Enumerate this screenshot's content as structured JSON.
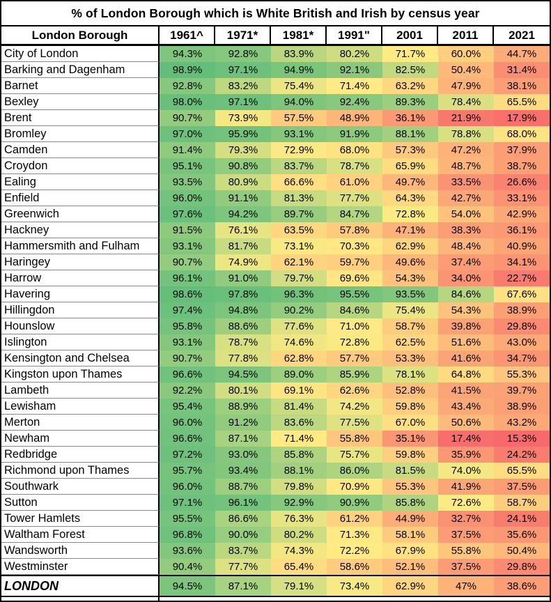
{
  "chart_data": {
    "type": "heatmap",
    "title": "% of London Borough which is White British and Irish by census year",
    "row_header": "London Borough",
    "columns": [
      "1961^",
      "1971*",
      "1981*",
      "1991\"",
      "2001",
      "2011",
      "2021"
    ],
    "rows": [
      {
        "name": "City of London",
        "values": [
          94.3,
          92.8,
          83.9,
          80.2,
          71.7,
          60.0,
          44.7
        ]
      },
      {
        "name": "Barking and Dagenham",
        "values": [
          98.9,
          97.1,
          94.9,
          92.1,
          82.5,
          50.4,
          31.4
        ]
      },
      {
        "name": "Barnet",
        "values": [
          92.8,
          83.2,
          75.4,
          71.4,
          63.2,
          47.9,
          38.1
        ]
      },
      {
        "name": "Bexley",
        "values": [
          98.0,
          97.1,
          94.0,
          92.4,
          89.3,
          78.4,
          65.5
        ]
      },
      {
        "name": "Brent",
        "values": [
          90.7,
          73.9,
          57.5,
          48.9,
          36.1,
          21.9,
          17.9
        ]
      },
      {
        "name": "Bromley",
        "values": [
          97.0,
          95.9,
          93.1,
          91.9,
          88.1,
          78.8,
          68.0
        ]
      },
      {
        "name": "Camden",
        "values": [
          91.4,
          79.3,
          72.9,
          68.0,
          57.3,
          47.2,
          37.9
        ]
      },
      {
        "name": "Croydon",
        "values": [
          95.1,
          90.8,
          83.7,
          78.7,
          65.9,
          48.7,
          38.7
        ]
      },
      {
        "name": "Ealing",
        "values": [
          93.5,
          80.9,
          66.6,
          61.0,
          49.7,
          33.5,
          26.6
        ]
      },
      {
        "name": "Enfield",
        "values": [
          96.0,
          91.1,
          81.3,
          77.7,
          64.3,
          42.7,
          33.1
        ]
      },
      {
        "name": "Greenwich",
        "values": [
          97.6,
          94.2,
          89.7,
          84.7,
          72.8,
          54.0,
          42.9
        ]
      },
      {
        "name": "Hackney",
        "values": [
          91.5,
          76.1,
          63.5,
          57.8,
          47.1,
          38.3,
          36.1
        ]
      },
      {
        "name": "Hammersmith and Fulham",
        "values": [
          93.1,
          81.7,
          73.1,
          70.3,
          62.9,
          48.4,
          40.9
        ]
      },
      {
        "name": "Haringey",
        "values": [
          90.7,
          74.9,
          62.1,
          59.7,
          49.6,
          37.4,
          34.1
        ]
      },
      {
        "name": "Harrow",
        "values": [
          96.1,
          91.0,
          79.7,
          69.6,
          54.3,
          34.0,
          22.7
        ]
      },
      {
        "name": "Havering",
        "values": [
          98.6,
          97.8,
          96.3,
          95.5,
          93.5,
          84.6,
          67.6
        ]
      },
      {
        "name": "Hillingdon",
        "values": [
          97.4,
          94.8,
          90.2,
          84.6,
          75.4,
          54.3,
          38.9
        ]
      },
      {
        "name": "Hounslow",
        "values": [
          95.8,
          88.6,
          77.6,
          71.0,
          58.7,
          39.8,
          29.8
        ]
      },
      {
        "name": "Islington",
        "values": [
          93.1,
          78.7,
          74.6,
          72.8,
          62.5,
          51.6,
          43.0
        ]
      },
      {
        "name": "Kensington and Chelsea",
        "values": [
          90.7,
          77.8,
          62.8,
          57.7,
          53.3,
          41.6,
          34.7
        ]
      },
      {
        "name": "Kingston upon Thames",
        "values": [
          96.6,
          94.5,
          89.0,
          85.9,
          78.1,
          64.8,
          55.3
        ]
      },
      {
        "name": "Lambeth",
        "values": [
          92.2,
          80.1,
          69.1,
          62.6,
          52.8,
          41.5,
          39.7
        ]
      },
      {
        "name": "Lewisham",
        "values": [
          95.4,
          88.9,
          81.4,
          74.2,
          59.8,
          43.4,
          38.9
        ]
      },
      {
        "name": "Merton",
        "values": [
          96.0,
          91.2,
          83.6,
          77.5,
          67.0,
          50.6,
          43.2
        ]
      },
      {
        "name": "Newham",
        "values": [
          96.6,
          87.1,
          71.4,
          55.8,
          35.1,
          17.4,
          15.3
        ]
      },
      {
        "name": "Redbridge",
        "values": [
          97.2,
          93.0,
          85.8,
          75.7,
          59.8,
          35.9,
          24.2
        ]
      },
      {
        "name": "Richmond upon Thames",
        "values": [
          95.7,
          93.4,
          88.1,
          86.0,
          81.5,
          74.0,
          65.5
        ]
      },
      {
        "name": "Southwark",
        "values": [
          96.0,
          88.7,
          79.8,
          70.9,
          55.3,
          41.9,
          37.5
        ]
      },
      {
        "name": "Sutton",
        "values": [
          97.1,
          96.1,
          92.9,
          90.9,
          85.8,
          72.6,
          58.7
        ]
      },
      {
        "name": "Tower Hamlets",
        "values": [
          95.5,
          86.6,
          76.3,
          61.2,
          44.9,
          32.7,
          24.1
        ]
      },
      {
        "name": "Waltham Forest",
        "values": [
          96.8,
          90.0,
          80.2,
          71.3,
          58.1,
          37.5,
          35.6
        ]
      },
      {
        "name": "Wandsworth",
        "values": [
          93.6,
          83.7,
          74.3,
          72.2,
          67.9,
          55.8,
          50.4
        ]
      },
      {
        "name": "Westminster",
        "values": [
          90.4,
          77.7,
          65.4,
          58.6,
          52.1,
          37.5,
          29.8
        ]
      }
    ],
    "total": {
      "name": "LONDON",
      "values": [
        94.5,
        87.1,
        79.1,
        73.4,
        62.9,
        47,
        38.6
      ]
    },
    "value_suffix": "%",
    "color_scale": {
      "min_value": 15.3,
      "mid_value": 72.0,
      "max_value": 98.9,
      "min_color": "#F8696B",
      "mid_color": "#FFEB84",
      "max_color": "#63BE7B"
    }
  }
}
